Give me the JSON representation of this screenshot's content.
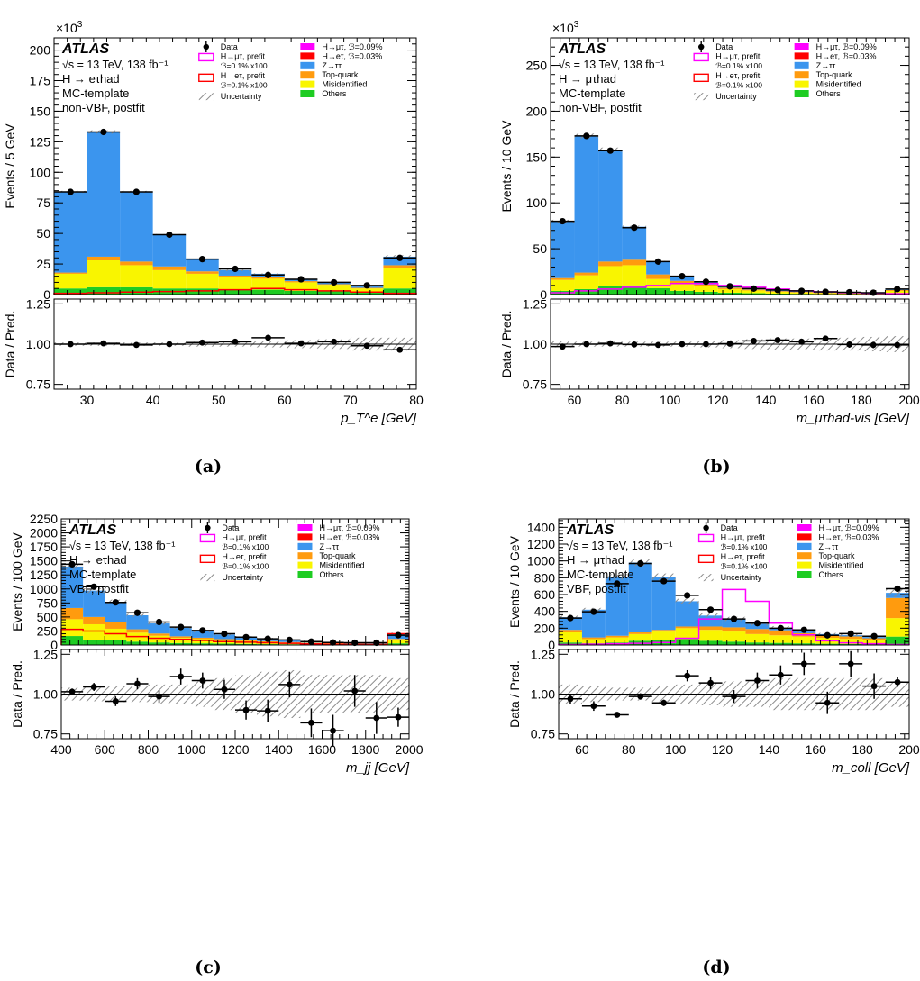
{
  "colors": {
    "ztt": "#3b95ee",
    "topquark": "#ff9b0e",
    "misid": "#f9f500",
    "others": "#1ecc22",
    "hmt": "#ff00ff",
    "het": "#ff0000",
    "data": "#000000",
    "unc": "#9a9a9a"
  },
  "common_text": {
    "atlas": "ATLAS",
    "sqrt_s": "√s = 13 TeV, 138 fb⁻¹",
    "mc_template": "MC-template",
    "ratio_ylabel": "Data / Pred.",
    "exp_label": "×10",
    "exp_power": "3"
  },
  "legend_labels": {
    "data": "Data",
    "hmt_prefit": "H→μτ, prefit",
    "hmt_prefit_br": "ℬ=0.1% x100",
    "het_prefit": "H→eτ, prefit",
    "het_prefit_br": "ℬ=0.1% x100",
    "uncertainty": "Uncertainty",
    "hmt_postfit": "H→μτ, ℬ=0.09%",
    "het_postfit": "H→eτ, ℬ=0.03%",
    "ztt": "Z→ττ",
    "topquark": "Top-quark",
    "misid": "Misidentified",
    "others": "Others"
  },
  "chart_data": [
    {
      "panel": "a",
      "caption": "(a)",
      "type": "bar",
      "channel": "H → eτhad",
      "region": "non-VBF, postfit",
      "xlabel": "p_T^e [GeV]",
      "ylabel": "Events / 5 GeV",
      "exponent": true,
      "xlim": [
        25,
        80
      ],
      "ylim": [
        0,
        210
      ],
      "yticks": [
        0,
        25,
        50,
        75,
        100,
        125,
        150,
        175,
        200
      ],
      "xticks": [
        30,
        40,
        50,
        60,
        70,
        80
      ],
      "bins": [
        25,
        30,
        35,
        40,
        45,
        50,
        55,
        60,
        65,
        70,
        75,
        80
      ],
      "stack": {
        "others": [
          5,
          6,
          6,
          5,
          5,
          4,
          4,
          3,
          3,
          2,
          5
        ],
        "misid": [
          12,
          22,
          18,
          15,
          12,
          10,
          9,
          7,
          5,
          3,
          17
        ],
        "topquark": [
          1,
          3,
          3,
          3,
          2,
          1.5,
          1.5,
          1,
          0.5,
          0.5,
          2
        ],
        "ztt": [
          66,
          102,
          57,
          26,
          10,
          4.5,
          2.5,
          1.5,
          1.5,
          1.5,
          7
        ]
      },
      "signal_hmt": null,
      "signal_het": [
        1,
        1.5,
        2,
        2.5,
        3,
        4,
        5,
        4,
        3,
        2,
        1
      ],
      "data": [
        84,
        133,
        84,
        49,
        29,
        21,
        16,
        12.5,
        10,
        7.5,
        30
      ],
      "ratio": [
        1.0,
        1.005,
        0.995,
        1.0,
        1.01,
        1.015,
        1.04,
        1.005,
        1.015,
        0.99,
        0.965
      ],
      "ratio_err": [
        0.01,
        0.01,
        0.01,
        0.01,
        0.01,
        0.012,
        0.012,
        0.014,
        0.015,
        0.015,
        0.012
      ],
      "ratio_band": [
        0.01,
        0.01,
        0.01,
        0.01,
        0.015,
        0.015,
        0.02,
        0.025,
        0.03,
        0.04,
        0.04
      ],
      "ratio_ylim": [
        0.72,
        1.28
      ],
      "ratio_yticks": [
        0.75,
        1.0,
        1.25
      ],
      "ratio_ytick_labels": [
        "0.75",
        "1.00",
        "1.25"
      ]
    },
    {
      "panel": "b",
      "caption": "(b)",
      "type": "bar",
      "channel": "H → μτhad",
      "region": "non-VBF, postfit",
      "xlabel": "m_μτhad-vis [GeV]",
      "ylabel": "Events / 10 GeV",
      "exponent": true,
      "xlim": [
        50,
        200
      ],
      "ylim": [
        0,
        280
      ],
      "yticks": [
        0,
        50,
        100,
        150,
        200,
        250
      ],
      "xticks": [
        60,
        80,
        100,
        120,
        140,
        160,
        180,
        200
      ],
      "bins": [
        50,
        60,
        70,
        80,
        90,
        100,
        110,
        120,
        130,
        140,
        150,
        160,
        170,
        180,
        190,
        200
      ],
      "stack": {
        "others": [
          4,
          6,
          9,
          10,
          7,
          4,
          3,
          2,
          1.5,
          1,
          0.8,
          0.6,
          0.5,
          0.4,
          1
        ],
        "misid": [
          12,
          15,
          22,
          22,
          10,
          8,
          6,
          4,
          3,
          2,
          1.5,
          1,
          1,
          0.8,
          3
        ],
        "topquark": [
          2,
          3,
          5,
          6,
          5,
          3,
          2,
          1.5,
          1,
          0.8,
          0.6,
          0.5,
          0.4,
          0.3,
          1
        ],
        "ztt": [
          62,
          149,
          122,
          36,
          14,
          5,
          3,
          1.5,
          1,
          1,
          0.8,
          0.6,
          0.5,
          0.5,
          1
        ]
      },
      "signal_hmt": [
        2,
        4,
        6,
        8,
        10,
        12,
        12,
        10,
        8,
        6,
        4,
        3,
        2,
        1.5,
        1
      ],
      "signal_het": null,
      "data": [
        80,
        173,
        157,
        73,
        36,
        20,
        14,
        9,
        6.5,
        5,
        4,
        3,
        2.5,
        2,
        6
      ],
      "ratio": [
        0.985,
        1.0,
        1.005,
        0.998,
        0.995,
        1.0,
        1.0,
        1.003,
        1.02,
        1.025,
        1.015,
        1.035,
        0.998,
        0.995,
        0.995
      ],
      "ratio_err": [
        0.01,
        0.008,
        0.008,
        0.01,
        0.012,
        0.012,
        0.012,
        0.014,
        0.014,
        0.016,
        0.016,
        0.016,
        0.02,
        0.02,
        0.02
      ],
      "ratio_band": [
        0.02,
        0.015,
        0.015,
        0.015,
        0.015,
        0.015,
        0.02,
        0.025,
        0.03,
        0.035,
        0.035,
        0.04,
        0.04,
        0.045,
        0.05
      ],
      "ratio_ylim": [
        0.72,
        1.28
      ],
      "ratio_yticks": [
        0.75,
        1.0,
        1.25
      ],
      "ratio_ytick_labels": [
        "0.75",
        "1.00",
        "1.25"
      ]
    },
    {
      "panel": "c",
      "caption": "(c)",
      "type": "bar",
      "channel": "H → eτhad",
      "region": "VBF, postfit",
      "xlabel": "m_jj [GeV]",
      "ylabel": "Events / 100 GeV",
      "exponent": false,
      "xlim": [
        400,
        2000
      ],
      "ylim": [
        0,
        2250
      ],
      "yticks": [
        0,
        250,
        500,
        750,
        1000,
        1250,
        1500,
        1750,
        2000,
        2250
      ],
      "xticks": [
        400,
        600,
        800,
        1000,
        1200,
        1400,
        1600,
        1800,
        2000
      ],
      "bins": [
        400,
        500,
        600,
        700,
        800,
        900,
        1000,
        1100,
        1200,
        1300,
        1400,
        1500,
        1600,
        1700,
        1800,
        1900,
        2000
      ],
      "stack": {
        "others": [
          160,
          90,
          90,
          60,
          45,
          35,
          30,
          25,
          20,
          15,
          12,
          10,
          8,
          7,
          6,
          30
        ],
        "misid": [
          300,
          280,
          200,
          160,
          120,
          90,
          75,
          60,
          50,
          40,
          30,
          25,
          20,
          15,
          12,
          70
        ],
        "topquark": [
          200,
          130,
          120,
          60,
          40,
          30,
          25,
          20,
          15,
          12,
          10,
          8,
          6,
          5,
          4,
          10
        ],
        "ztt": [
          740,
          470,
          360,
          250,
          180,
          150,
          115,
          80,
          55,
          45,
          33,
          22,
          16,
          13,
          8,
          90
        ]
      },
      "signal_hmt": null,
      "signal_het": [
        280,
        250,
        200,
        150,
        120,
        100,
        80,
        60,
        50,
        40,
        30,
        20,
        15,
        10,
        8,
        200
      ],
      "data": [
        1440,
        1040,
        760,
        575,
        410,
        320,
        260,
        200,
        140,
        110,
        90,
        60,
        45,
        40,
        40,
        175
      ],
      "ratio": [
        1.015,
        1.045,
        0.955,
        1.065,
        0.985,
        1.11,
        1.085,
        1.03,
        0.9,
        0.895,
        1.06,
        0.82,
        0.77,
        1.02,
        0.85,
        0.855
      ],
      "ratio_err": [
        0.02,
        0.025,
        0.03,
        0.035,
        0.04,
        0.05,
        0.05,
        0.06,
        0.06,
        0.07,
        0.08,
        0.09,
        0.1,
        0.1,
        0.1,
        0.06
      ],
      "ratio_band": [
        0.04,
        0.045,
        0.05,
        0.05,
        0.06,
        0.06,
        0.08,
        0.1,
        0.12,
        0.14,
        0.15,
        0.12,
        0.12,
        0.12,
        0.12,
        0.1
      ],
      "ratio_ylim": [
        0.72,
        1.28
      ],
      "ratio_yticks": [
        0.75,
        1.0,
        1.25
      ],
      "ratio_ytick_labels": [
        "0.75",
        "1.00",
        "1.25"
      ]
    },
    {
      "panel": "d",
      "caption": "(d)",
      "type": "bar",
      "channel": "H → μτhad",
      "region": "VBF, postfit",
      "xlabel": "m_coll [GeV]",
      "ylabel": "Events / 10 GeV",
      "exponent": false,
      "xlim": [
        50,
        200
      ],
      "ylim": [
        0,
        1500
      ],
      "yticks": [
        0,
        200,
        400,
        600,
        800,
        1000,
        1200,
        1400
      ],
      "xticks": [
        60,
        80,
        100,
        120,
        140,
        160,
        180,
        200
      ],
      "bins": [
        50,
        60,
        70,
        80,
        90,
        100,
        110,
        120,
        130,
        140,
        150,
        160,
        170,
        180,
        190,
        200
      ],
      "stack": {
        "others": [
          30,
          20,
          30,
          50,
          60,
          70,
          50,
          40,
          30,
          25,
          20,
          15,
          12,
          10,
          100
        ],
        "misid": [
          120,
          50,
          60,
          80,
          100,
          130,
          130,
          120,
          100,
          90,
          80,
          70,
          60,
          50,
          220
        ],
        "topquark": [
          30,
          20,
          20,
          20,
          20,
          20,
          40,
          50,
          60,
          60,
          40,
          30,
          30,
          20,
          240
        ],
        "ztt": [
          150,
          330,
          700,
          830,
          630,
          300,
          130,
          100,
          60,
          30,
          20,
          15,
          15,
          15,
          60
        ]
      },
      "signal_hmt": [
        5,
        10,
        15,
        20,
        30,
        80,
        310,
        660,
        520,
        260,
        120,
        50,
        25,
        15,
        5
      ],
      "signal_het": null,
      "data": [
        320,
        395,
        730,
        970,
        760,
        590,
        420,
        310,
        260,
        200,
        180,
        115,
        135,
        105,
        670
      ],
      "ratio": [
        0.97,
        0.925,
        0.87,
        0.985,
        0.945,
        1.115,
        1.07,
        0.985,
        1.085,
        1.12,
        1.19,
        0.945,
        1.19,
        1.05,
        1.075
      ],
      "ratio_err": [
        0.03,
        0.03,
        0.015,
        0.02,
        0.02,
        0.035,
        0.04,
        0.04,
        0.05,
        0.06,
        0.07,
        0.07,
        0.08,
        0.08,
        0.03
      ],
      "ratio_band": [
        0.06,
        0.05,
        0.04,
        0.04,
        0.05,
        0.06,
        0.07,
        0.08,
        0.08,
        0.1,
        0.1,
        0.1,
        0.1,
        0.1,
        0.08
      ],
      "ratio_ylim": [
        0.72,
        1.28
      ],
      "ratio_yticks": [
        0.75,
        1.0,
        1.25
      ],
      "ratio_ytick_labels": [
        "0.75",
        "1.00",
        "1.25"
      ]
    }
  ]
}
